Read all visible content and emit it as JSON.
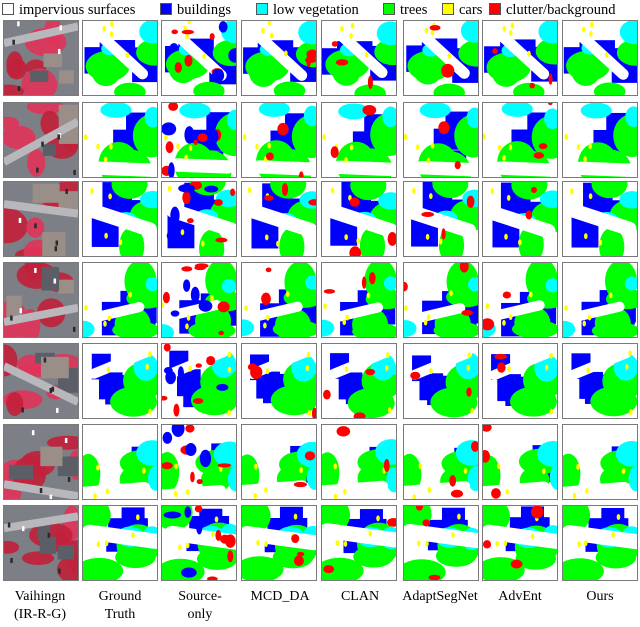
{
  "legend": [
    {
      "label": "impervious surfaces",
      "color": "#ffffff"
    },
    {
      "label": "buildings",
      "color": "#0000ff"
    },
    {
      "label": "low vegetation",
      "color": "#00ffff"
    },
    {
      "label": "trees",
      "color": "#00ff00"
    },
    {
      "label": "cars",
      "color": "#ffff00"
    },
    {
      "label": "clutter/background",
      "color": "#ff0000"
    }
  ],
  "columns": [
    {
      "line1": "Vaihingn",
      "line2": "(IR-R-G)"
    },
    {
      "line1": "Ground",
      "line2": "Truth"
    },
    {
      "line1": "Source-",
      "line2": "only"
    },
    {
      "line1": "MCD_DA",
      "line2": ""
    },
    {
      "line1": "CLAN",
      "line2": ""
    },
    {
      "line1": "AdaptSegNet",
      "line2": ""
    },
    {
      "line1": "AdvEnt",
      "line2": ""
    },
    {
      "line1": "Ours",
      "line2": ""
    }
  ],
  "rows": 7,
  "colors": {
    "impervious": "#ffffff",
    "building": "#0000ff",
    "lowveg": "#00ffff",
    "tree": "#00ff00",
    "car": "#ffff00",
    "clutter": "#ff0000"
  }
}
